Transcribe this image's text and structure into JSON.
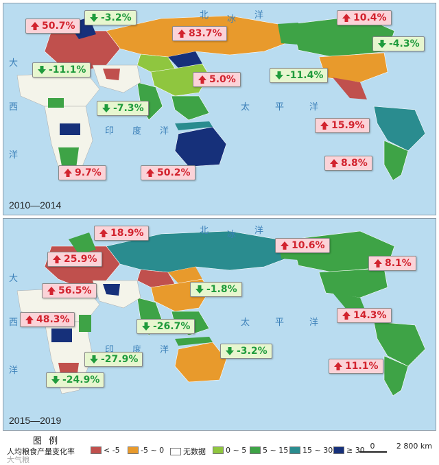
{
  "panels": [
    {
      "period": "2010—2014",
      "callouts": [
        {
          "value": "50.7%",
          "dir": "up"
        },
        {
          "value": "-3.2%",
          "dir": "down"
        },
        {
          "value": "83.7%",
          "dir": "up"
        },
        {
          "value": "10.4%",
          "dir": "up"
        },
        {
          "value": "-4.3%",
          "dir": "down"
        },
        {
          "value": "-11.1%",
          "dir": "down"
        },
        {
          "value": "5.0%",
          "dir": "up"
        },
        {
          "value": "-11.4%",
          "dir": "down"
        },
        {
          "value": "-7.3%",
          "dir": "down"
        },
        {
          "value": "15.9%",
          "dir": "up"
        },
        {
          "value": "8.8%",
          "dir": "up"
        },
        {
          "value": "9.7%",
          "dir": "up"
        },
        {
          "value": "50.2%",
          "dir": "up"
        }
      ]
    },
    {
      "period": "2015—2019",
      "callouts": [
        {
          "value": "18.9%",
          "dir": "up"
        },
        {
          "value": "25.9%",
          "dir": "up"
        },
        {
          "value": "10.6%",
          "dir": "up"
        },
        {
          "value": "8.1%",
          "dir": "up"
        },
        {
          "value": "56.5%",
          "dir": "up"
        },
        {
          "value": "-1.8%",
          "dir": "down"
        },
        {
          "value": "48.3%",
          "dir": "up"
        },
        {
          "value": "-26.7%",
          "dir": "down"
        },
        {
          "value": "14.3%",
          "dir": "up"
        },
        {
          "value": "-3.2%",
          "dir": "down"
        },
        {
          "value": "-27.9%",
          "dir": "down"
        },
        {
          "value": "11.1%",
          "dir": "up"
        },
        {
          "value": "-24.9%",
          "dir": "down"
        }
      ]
    }
  ],
  "ocean_labels": {
    "arctic": [
      "北",
      "冰",
      "洋"
    ],
    "atlantic": [
      "大",
      "西",
      "洋"
    ],
    "indian": [
      "印",
      "度",
      "洋"
    ],
    "pacific": [
      "太",
      "平",
      "洋"
    ]
  },
  "legend": {
    "title": "图 例",
    "description": "人均粮食产量变化率",
    "watermark": "大气粮",
    "items": [
      {
        "label": "< -5",
        "color": "#c0504d"
      },
      {
        "label": "-5 ~ 0",
        "color": "#e89a2c"
      },
      {
        "label": "无数据",
        "color": "#ffffff"
      },
      {
        "label": "0 ~ 5",
        "color": "#8fc63f"
      },
      {
        "label": "5 ~ 15",
        "color": "#3ea346"
      },
      {
        "label": "15 ~ 30",
        "color": "#2a8c8f"
      },
      {
        "label": "≥ 30",
        "color": "#16307a"
      }
    ],
    "scale_zero": "0",
    "scale_label": "2 800 km"
  },
  "colors": {
    "ocean": "#b9dcf0",
    "up_bg": "#fbd3d8",
    "up_text": "#d2232e",
    "down_bg": "#e7f6cf",
    "down_text": "#1f9b3c",
    "land_nodata": "#f4f4ea"
  }
}
